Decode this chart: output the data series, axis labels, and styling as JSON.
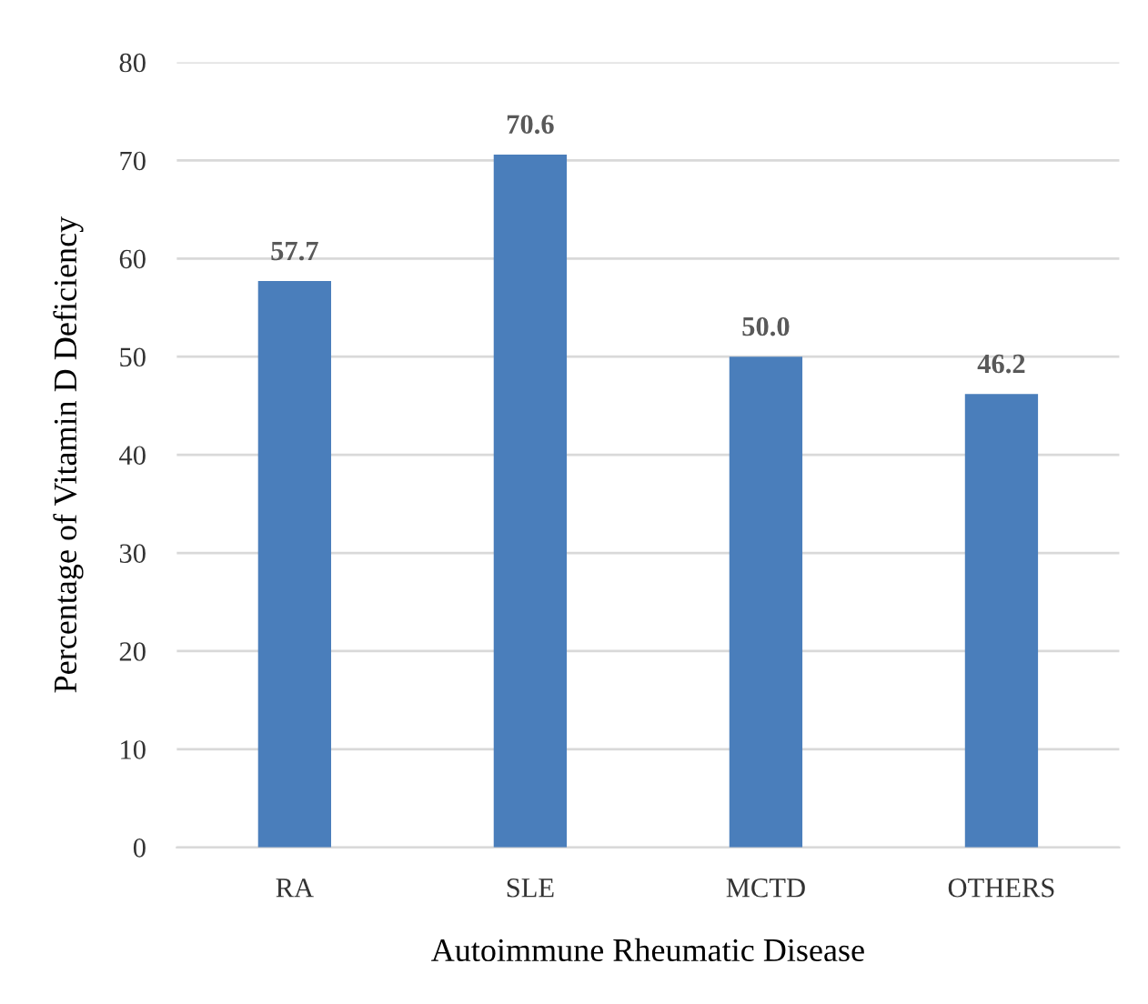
{
  "chart_data": {
    "type": "bar",
    "xlabel": "Autoimmune Rheumatic Disease",
    "ylabel": "Percentage of Vitamin D Deficiency",
    "categories": [
      "RA",
      "SLE",
      "MCTD",
      "OTHERS"
    ],
    "values": [
      57.7,
      70.6,
      50.0,
      46.2
    ],
    "value_labels": [
      "57.7",
      "70.6",
      "50.0",
      "46.2"
    ],
    "color": "#4a7ebb",
    "ylim": [
      0,
      80
    ],
    "yticks": [
      0,
      10,
      20,
      30,
      40,
      50,
      60,
      70,
      80
    ],
    "grid": "y",
    "legend": false
  }
}
